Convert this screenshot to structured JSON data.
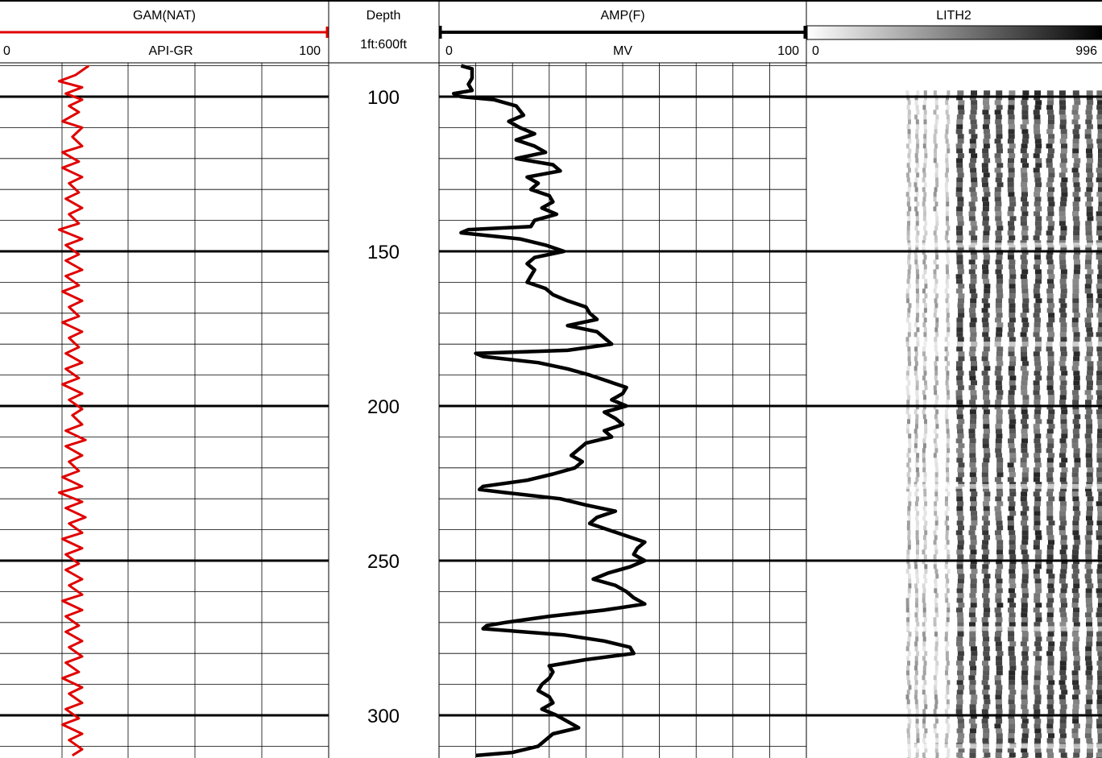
{
  "chart_data": {
    "type": "line",
    "title": "",
    "depth_track": {
      "label": "Depth",
      "scale": "1ft:600ft",
      "ylim": [
        90,
        313
      ],
      "ticks": [
        100,
        150,
        200,
        250,
        300
      ]
    },
    "tracks": [
      {
        "name": "GAM(NAT)",
        "unit": "API-GR",
        "xlim": [
          0,
          100
        ],
        "min_label": "0",
        "max_label": "100",
        "color": "#e00000",
        "grid": true,
        "series": [
          {
            "depth": [
              90,
              93,
              95,
              97,
              99,
              101,
              103,
              105,
              108,
              110,
              113,
              116,
              118,
              121,
              123,
              126,
              128,
              131,
              133,
              136,
              138,
              141,
              143,
              146,
              148,
              151,
              153,
              156,
              158,
              161,
              163,
              166,
              168,
              171,
              173,
              176,
              178,
              181,
              183,
              186,
              188,
              191,
              193,
              196,
              198,
              201,
              203,
              206,
              208,
              211,
              213,
              216,
              218,
              221,
              223,
              226,
              228,
              231,
              233,
              236,
              238,
              241,
              243,
              246,
              248,
              251,
              253,
              256,
              258,
              261,
              263,
              266,
              268,
              271,
              273,
              276,
              278,
              281,
              283,
              286,
              288,
              291,
              293,
              296,
              298,
              301,
              303,
              306,
              308,
              311,
              313
            ],
            "values": [
              27,
              23,
              18,
              25,
              20,
              25,
              21,
              24,
              19,
              25,
              22,
              25,
              19,
              24,
              19,
              25,
              21,
              24,
              20,
              25,
              21,
              24,
              18,
              25,
              20,
              24,
              20,
              25,
              20,
              24,
              19,
              25,
              21,
              24,
              19,
              25,
              21,
              24,
              20,
              25,
              20,
              24,
              19,
              25,
              21,
              25,
              22,
              25,
              20,
              26,
              20,
              25,
              21,
              24,
              19,
              25,
              18,
              25,
              20,
              26,
              21,
              25,
              19,
              25,
              20,
              24,
              20,
              25,
              21,
              25,
              19,
              25,
              20,
              24,
              20,
              25,
              21,
              25,
              20,
              24,
              19,
              25,
              21,
              25,
              20,
              24,
              19,
              25,
              21,
              25,
              22
            ]
          }
        ]
      },
      {
        "name": "AMP(F)",
        "unit": "MV",
        "xlim": [
          0,
          100
        ],
        "min_label": "0",
        "max_label": "100",
        "color": "#000000",
        "grid": true,
        "series": [
          {
            "depth": [
              90,
              91,
              94,
              96,
              98,
              99,
              100,
              101,
              103,
              106,
              108,
              110,
              112,
              114,
              116,
              118,
              120,
              122,
              124,
              126,
              128,
              130,
              132,
              134,
              136,
              138,
              140,
              142,
              143,
              144,
              146,
              148,
              150,
              152,
              154,
              156,
              158,
              160,
              162,
              164,
              166,
              168,
              170,
              172,
              174,
              176,
              178,
              180,
              182,
              183,
              184,
              186,
              188,
              190,
              192,
              194,
              196,
              198,
              200,
              202,
              204,
              206,
              208,
              210,
              212,
              214,
              216,
              218,
              220,
              222,
              224,
              226,
              227,
              228,
              230,
              232,
              234,
              236,
              238,
              240,
              242,
              244,
              246,
              248,
              250,
              252,
              254,
              256,
              258,
              260,
              262,
              264,
              266,
              268,
              270,
              271,
              272,
              274,
              276,
              278,
              280,
              282,
              284,
              286,
              288,
              290,
              292,
              294,
              296,
              298,
              300,
              302,
              304,
              306,
              308,
              310,
              312,
              313
            ],
            "values": [
              6,
              9,
              9,
              8,
              9,
              4,
              6,
              15,
              21,
              23,
              19,
              22,
              26,
              21,
              26,
              29,
              21,
              31,
              33,
              24,
              27,
              25,
              30,
              31,
              28,
              32,
              26,
              25,
              8,
              6,
              22,
              29,
              34,
              26,
              24,
              26,
              25,
              24,
              29,
              31,
              35,
              40,
              41,
              43,
              35,
              43,
              45,
              47,
              35,
              10,
              12,
              27,
              35,
              41,
              46,
              51,
              50,
              47,
              51,
              45,
              48,
              50,
              45,
              47,
              40,
              38,
              36,
              39,
              37,
              31,
              24,
              12,
              11,
              18,
              33,
              40,
              48,
              43,
              41,
              46,
              51,
              56,
              54,
              53,
              56,
              52,
              46,
              42,
              48,
              51,
              53,
              56,
              45,
              30,
              18,
              13,
              12,
              34,
              45,
              52,
              53,
              40,
              30,
              31,
              30,
              28,
              27,
              30,
              31,
              28,
              32,
              35,
              38,
              31,
              29,
              27,
              20,
              10
            ]
          }
        ]
      },
      {
        "name": "LITH2",
        "unit": "",
        "xlim": [
          0,
          996
        ],
        "min_label": "0",
        "max_label": "996",
        "type": "heatmap",
        "colormap": [
          "#ffffff",
          "#000000"
        ]
      }
    ]
  }
}
